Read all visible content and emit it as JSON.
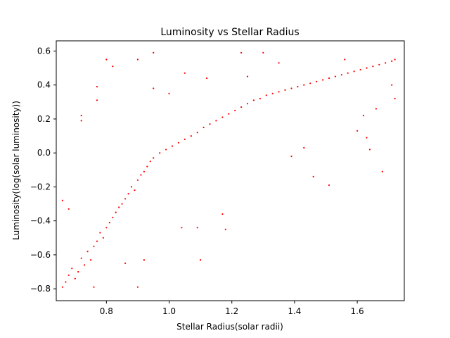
{
  "chart_data": {
    "type": "scatter",
    "title": "Luminosity vs Stellar Radius",
    "xlabel": "Stellar Radius(solar radii)",
    "ylabel": "Luminosity(log(solar luminosity))",
    "xlim": [
      0.64,
      1.75
    ],
    "ylim": [
      -0.87,
      0.66
    ],
    "xticks": [
      0.8,
      1.0,
      1.2,
      1.4,
      1.6
    ],
    "xtick_labels": [
      "0.8",
      "1.0",
      "1.2",
      "1.4",
      "1.6"
    ],
    "yticks": [
      -0.8,
      -0.6,
      -0.4,
      -0.2,
      0.0,
      0.2,
      0.4,
      0.6
    ],
    "ytick_labels": [
      "−0.8",
      "−0.6",
      "−0.4",
      "−0.2",
      "0.0",
      "0.2",
      "0.4",
      "0.6"
    ],
    "grid": false,
    "legend": "none",
    "marker_color": "#ff0000",
    "series": [
      {
        "values": [
          [
            0.66,
            -0.79
          ],
          [
            0.67,
            -0.76
          ],
          [
            0.68,
            -0.72
          ],
          [
            0.69,
            -0.68
          ],
          [
            0.7,
            -0.74
          ],
          [
            0.71,
            -0.7
          ],
          [
            0.72,
            -0.62
          ],
          [
            0.73,
            -0.66
          ],
          [
            0.74,
            -0.58
          ],
          [
            0.75,
            -0.63
          ],
          [
            0.76,
            -0.55
          ],
          [
            0.77,
            -0.52
          ],
          [
            0.78,
            -0.47
          ],
          [
            0.79,
            -0.5
          ],
          [
            0.8,
            -0.44
          ],
          [
            0.81,
            -0.41
          ],
          [
            0.82,
            -0.38
          ],
          [
            0.83,
            -0.35
          ],
          [
            0.84,
            -0.32
          ],
          [
            0.85,
            -0.3
          ],
          [
            0.86,
            -0.27
          ],
          [
            0.87,
            -0.24
          ],
          [
            0.88,
            -0.2
          ],
          [
            0.89,
            -0.22
          ],
          [
            0.9,
            -0.16
          ],
          [
            0.91,
            -0.13
          ],
          [
            0.92,
            -0.11
          ],
          [
            0.93,
            -0.08
          ],
          [
            0.94,
            -0.05
          ],
          [
            0.95,
            -0.03
          ],
          [
            0.97,
            0.0
          ],
          [
            0.99,
            0.02
          ],
          [
            1.01,
            0.04
          ],
          [
            1.03,
            0.06
          ],
          [
            1.05,
            0.08
          ],
          [
            1.07,
            0.1
          ],
          [
            1.09,
            0.12
          ],
          [
            1.11,
            0.15
          ],
          [
            1.13,
            0.17
          ],
          [
            1.15,
            0.19
          ],
          [
            1.17,
            0.21
          ],
          [
            1.19,
            0.23
          ],
          [
            1.21,
            0.25
          ],
          [
            1.23,
            0.27
          ],
          [
            1.25,
            0.29
          ],
          [
            1.27,
            0.31
          ],
          [
            1.29,
            0.32
          ],
          [
            1.31,
            0.34
          ],
          [
            1.33,
            0.35
          ],
          [
            1.35,
            0.36
          ],
          [
            1.37,
            0.37
          ],
          [
            1.39,
            0.38
          ],
          [
            1.41,
            0.39
          ],
          [
            1.43,
            0.4
          ],
          [
            1.45,
            0.41
          ],
          [
            1.47,
            0.42
          ],
          [
            1.49,
            0.43
          ],
          [
            1.51,
            0.44
          ],
          [
            1.53,
            0.45
          ],
          [
            1.55,
            0.46
          ],
          [
            1.57,
            0.47
          ],
          [
            1.59,
            0.48
          ],
          [
            1.61,
            0.49
          ],
          [
            1.63,
            0.5
          ],
          [
            1.65,
            0.51
          ],
          [
            1.67,
            0.52
          ],
          [
            1.69,
            0.53
          ],
          [
            1.71,
            0.54
          ],
          [
            1.72,
            0.55
          ],
          [
            0.66,
            -0.28
          ],
          [
            0.68,
            -0.33
          ],
          [
            0.72,
            0.22
          ],
          [
            0.72,
            0.19
          ],
          [
            0.76,
            -0.79
          ],
          [
            0.77,
            0.39
          ],
          [
            0.77,
            0.31
          ],
          [
            0.8,
            0.55
          ],
          [
            0.82,
            0.51
          ],
          [
            0.86,
            -0.65
          ],
          [
            0.9,
            0.55
          ],
          [
            0.9,
            -0.79
          ],
          [
            0.92,
            -0.63
          ],
          [
            0.95,
            0.59
          ],
          [
            1.04,
            -0.44
          ],
          [
            1.09,
            -0.44
          ],
          [
            1.1,
            -0.63
          ],
          [
            1.17,
            -0.36
          ],
          [
            1.18,
            -0.45
          ],
          [
            1.23,
            0.59
          ],
          [
            1.3,
            0.59
          ],
          [
            1.46,
            -0.14
          ],
          [
            1.51,
            -0.19
          ],
          [
            1.6,
            0.13
          ],
          [
            1.63,
            0.09
          ],
          [
            1.64,
            0.02
          ],
          [
            1.66,
            0.26
          ],
          [
            1.68,
            -0.11
          ],
          [
            1.71,
            0.4
          ],
          [
            1.72,
            0.32
          ],
          [
            1.39,
            -0.02
          ],
          [
            1.43,
            0.03
          ],
          [
            1.25,
            0.45
          ],
          [
            1.35,
            0.53
          ],
          [
            1.56,
            0.55
          ],
          [
            1.62,
            0.22
          ],
          [
            1.0,
            0.35
          ],
          [
            1.05,
            0.47
          ],
          [
            1.12,
            0.44
          ],
          [
            0.95,
            0.38
          ]
        ]
      }
    ]
  }
}
